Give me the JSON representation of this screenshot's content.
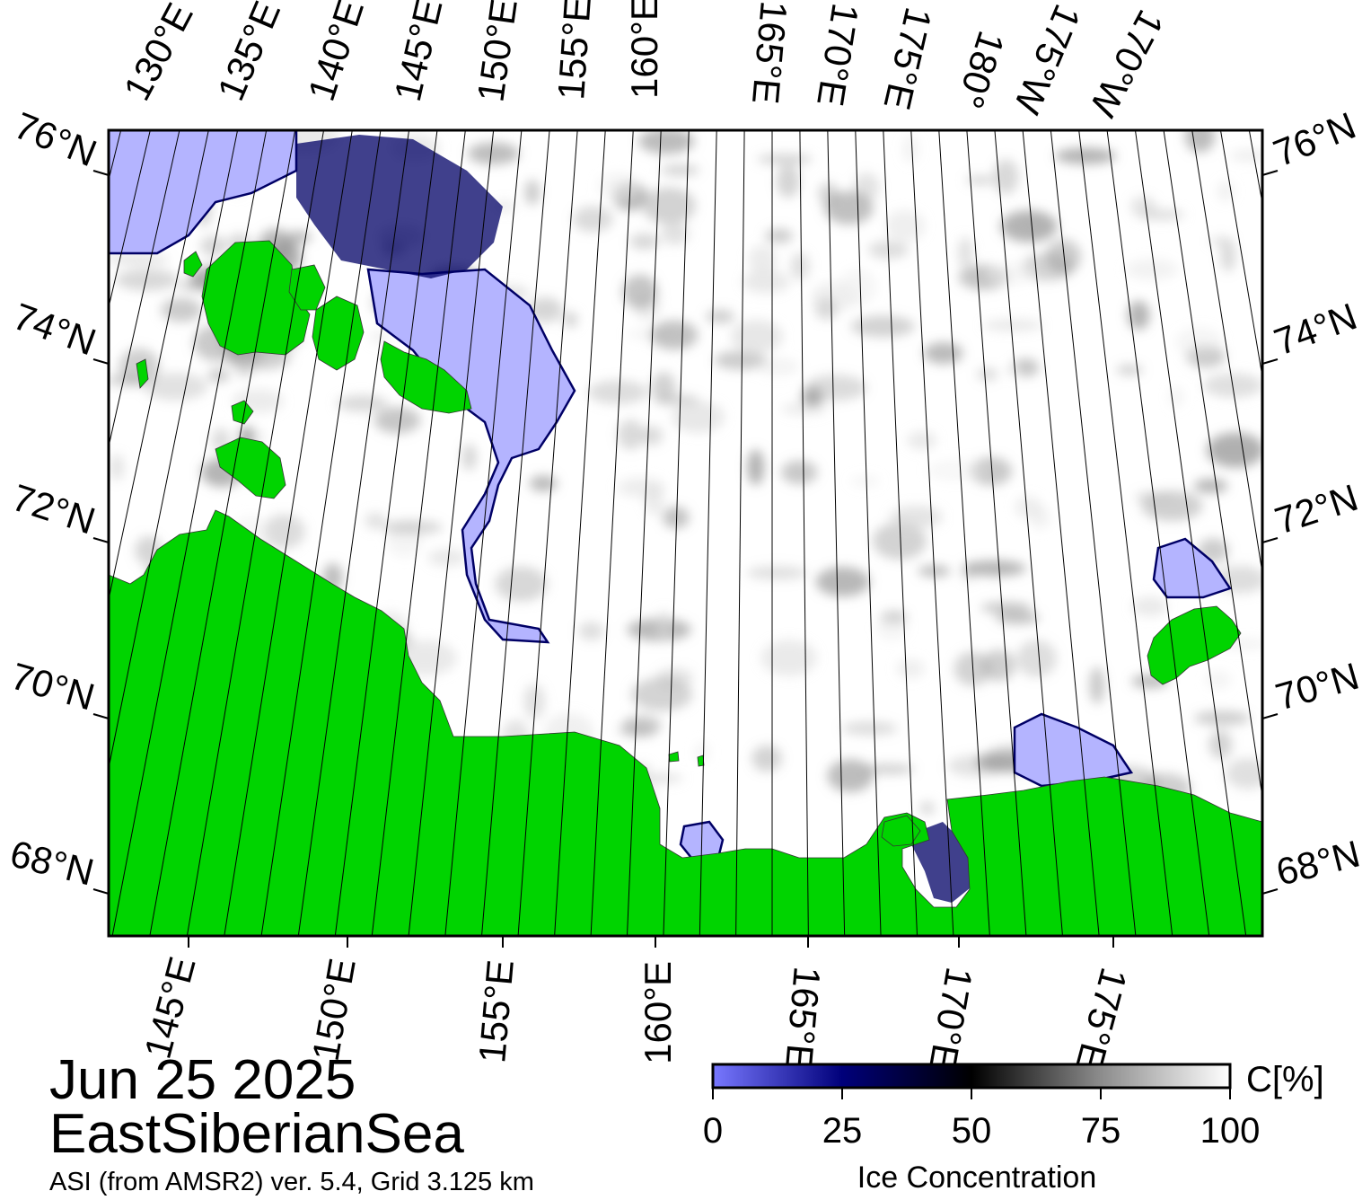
{
  "header": {
    "date": "Jun 25 2025",
    "region": "EastSiberianSea",
    "source": "ASI (from AMSR2) ver. 5.4,  Grid 3.125 km"
  },
  "map": {
    "projection": "polar-stereographic",
    "colors": {
      "land": "#00d400",
      "open_water": "#ffffff",
      "low_concentration": "#b4b4ff",
      "mid_concentration": "#000066",
      "high_concentration": "#000000",
      "no_data": "#808080"
    },
    "lat_labels": [
      "76°N",
      "74°N",
      "72°N",
      "70°N",
      "68°N"
    ],
    "top_lon_labels": [
      "130°E",
      "135°E",
      "140°E",
      "145°E",
      "150°E",
      "155°E",
      "160°E",
      "165°E",
      "170°E",
      "175°E",
      "180°",
      "175°W",
      "170°W"
    ],
    "bottom_lon_labels": [
      "145°E",
      "150°E",
      "155°E",
      "160°E",
      "165°E",
      "170°E",
      "175°E"
    ]
  },
  "colorbar": {
    "title": "Ice Concentration",
    "unit": "C[%]",
    "ticks": [
      "0",
      "25",
      "50",
      "75",
      "100"
    ],
    "range": [
      0,
      100
    ],
    "stops": [
      {
        "value": 0,
        "color": "#7878ff"
      },
      {
        "value": 25,
        "color": "#00007a"
      },
      {
        "value": 50,
        "color": "#000000"
      },
      {
        "value": 75,
        "color": "#8c8c8c"
      },
      {
        "value": 100,
        "color": "#ffffff"
      }
    ]
  }
}
